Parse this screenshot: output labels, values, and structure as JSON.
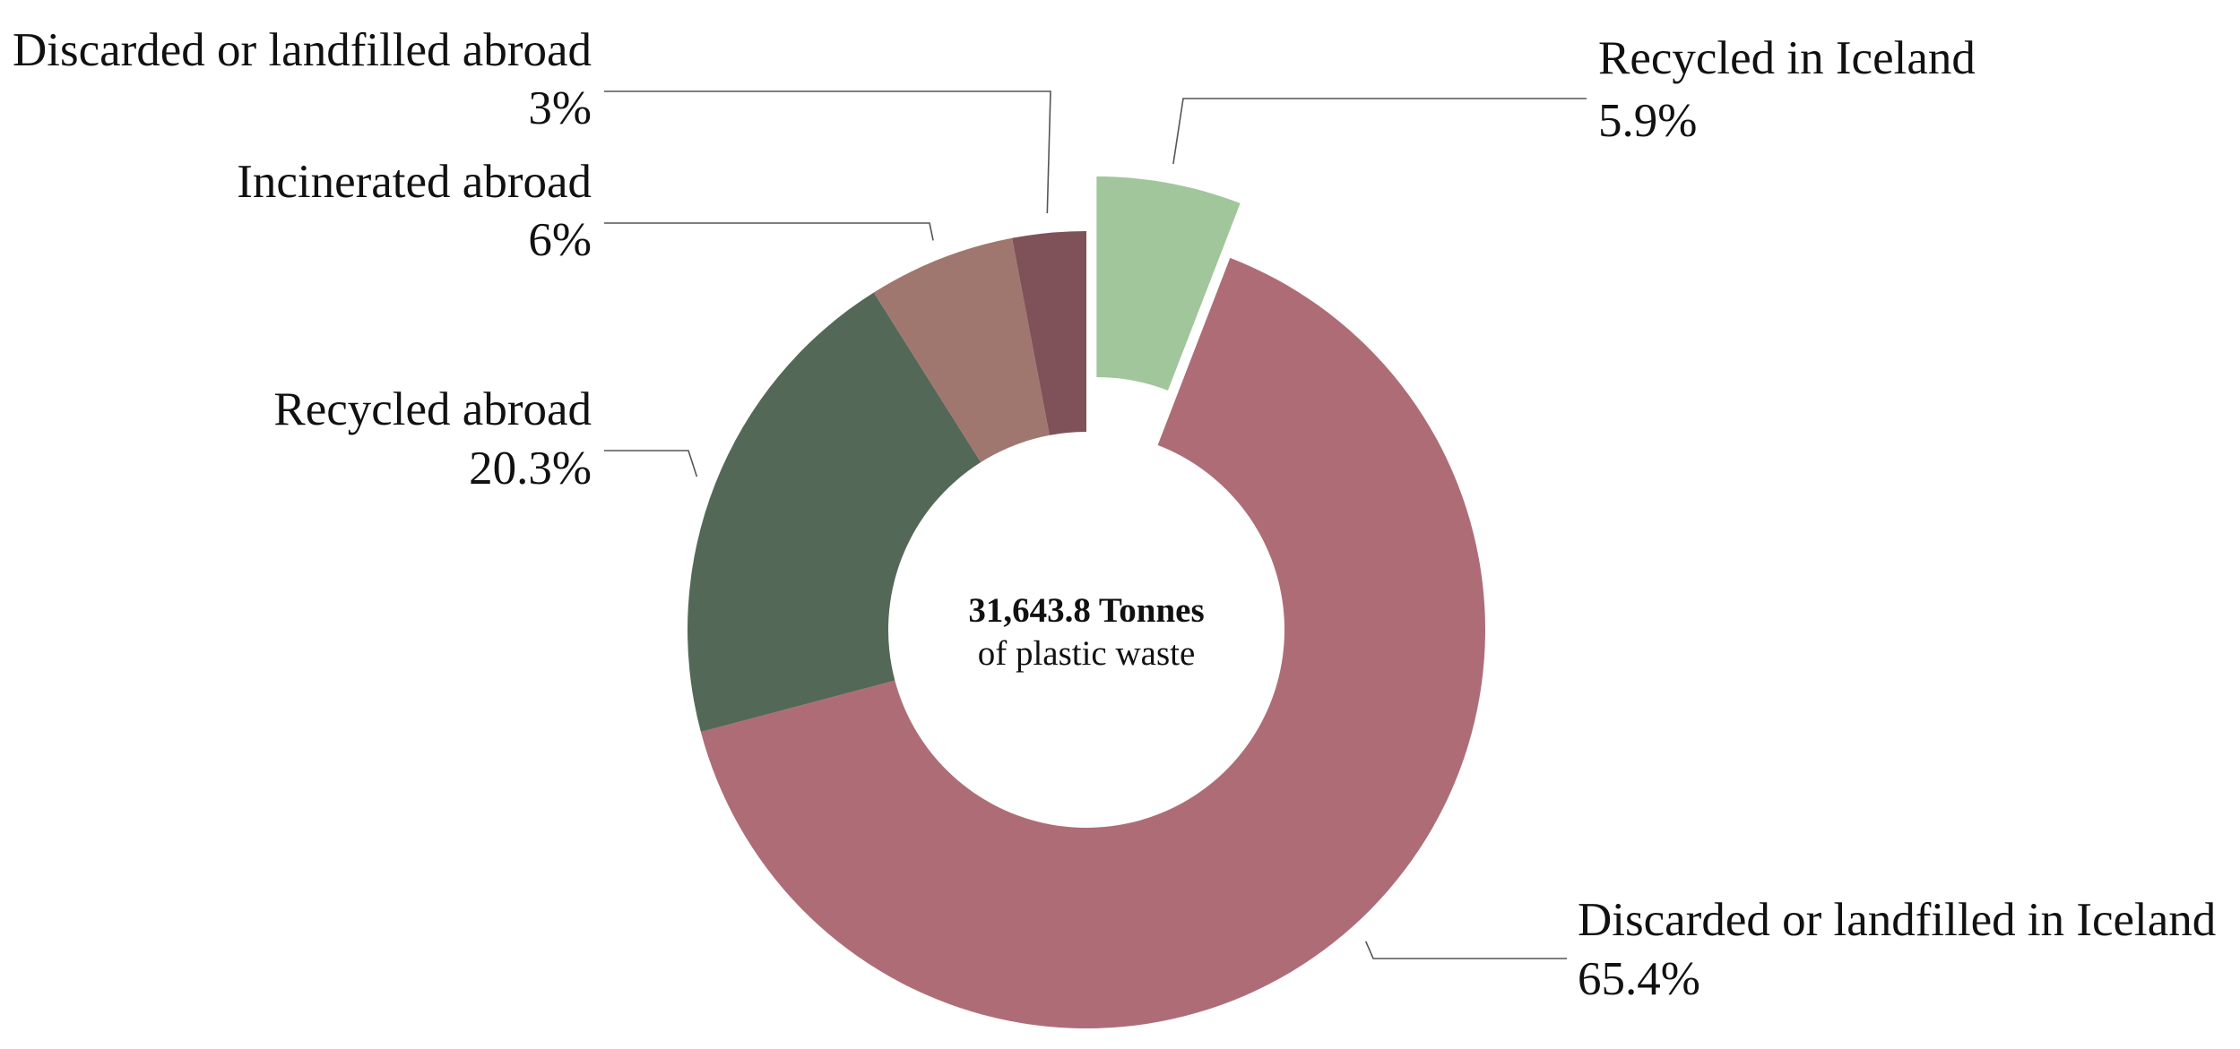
{
  "chart_data": {
    "type": "pie",
    "variant": "donut",
    "center": {
      "total": "31,643.8 Tonnes",
      "subtitle": "of plastic waste"
    },
    "slices": [
      {
        "label": "Recycled in Iceland",
        "value_label": "5.9%",
        "value": 5.9,
        "color": "#a1c69c",
        "exploded": true
      },
      {
        "label": "Discarded or landfilled in Iceland",
        "value_label": "65.4%",
        "value": 65.4,
        "color": "#ae6d76",
        "exploded": false
      },
      {
        "label": "Recycled abroad",
        "value_label": "20.3%",
        "value": 20.3,
        "color": "#546858",
        "exploded": false
      },
      {
        "label": "Incinerated abroad",
        "value_label": "6%",
        "value": 6,
        "color": "#a0776e",
        "exploded": false
      },
      {
        "label": "Discarded or landfilled abroad",
        "value_label": "3%",
        "value": 3,
        "color": "#7f525a",
        "exploded": false
      }
    ]
  }
}
